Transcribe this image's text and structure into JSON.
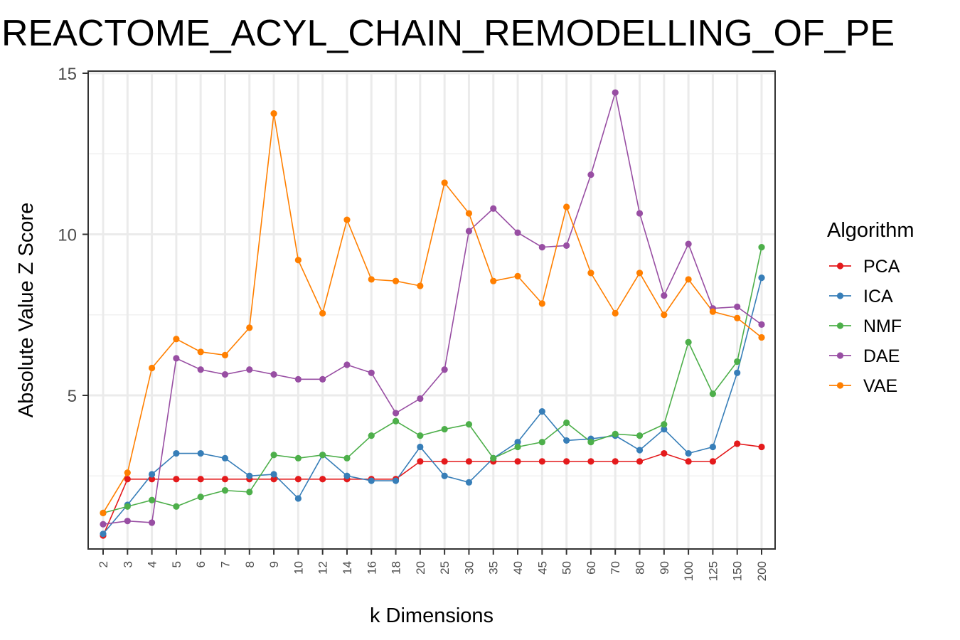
{
  "chart_data": {
    "type": "line",
    "title": "REACTOME_ACYL_CHAIN_REMODELLING_OF_PE",
    "xlabel": "k Dimensions",
    "ylabel": "Absolute Value Z Score",
    "ylim": [
      0.0,
      15.0
    ],
    "yticks": [
      5,
      10,
      15
    ],
    "grid": true,
    "legend_title": "Algorithm",
    "legend_position": "right",
    "categories": [
      "2",
      "3",
      "4",
      "5",
      "6",
      "7",
      "8",
      "9",
      "10",
      "12",
      "14",
      "16",
      "18",
      "20",
      "25",
      "30",
      "35",
      "40",
      "45",
      "50",
      "60",
      "70",
      "80",
      "90",
      "100",
      "125",
      "150",
      "200"
    ],
    "series": [
      {
        "name": "PCA",
        "color": "#E41A1C",
        "values": [
          0.65,
          2.4,
          2.4,
          2.4,
          2.4,
          2.4,
          2.4,
          2.4,
          2.4,
          2.4,
          2.4,
          2.4,
          2.4,
          2.95,
          2.95,
          2.95,
          2.95,
          2.95,
          2.95,
          2.95,
          2.95,
          2.95,
          2.95,
          3.2,
          2.95,
          2.95,
          3.5,
          3.4
        ]
      },
      {
        "name": "ICA",
        "color": "#377EB8",
        "values": [
          0.7,
          1.6,
          2.55,
          3.2,
          3.2,
          3.05,
          2.5,
          2.55,
          1.8,
          3.15,
          2.5,
          2.35,
          2.35,
          3.4,
          2.5,
          2.3,
          3.05,
          3.55,
          4.5,
          3.6,
          3.65,
          3.75,
          3.3,
          3.95,
          3.2,
          3.4,
          5.7,
          8.65
        ]
      },
      {
        "name": "NMF",
        "color": "#4DAF4A",
        "values": [
          1.35,
          1.55,
          1.75,
          1.55,
          1.85,
          2.05,
          2.0,
          3.15,
          3.05,
          3.15,
          3.05,
          3.75,
          4.2,
          3.75,
          3.95,
          4.1,
          3.05,
          3.4,
          3.55,
          4.15,
          3.55,
          3.8,
          3.75,
          4.1,
          6.65,
          5.05,
          6.05,
          9.6
        ]
      },
      {
        "name": "DAE",
        "color": "#984EA3",
        "values": [
          1.0,
          1.1,
          1.05,
          6.15,
          5.8,
          5.65,
          5.8,
          5.65,
          5.5,
          5.5,
          5.95,
          5.7,
          4.45,
          4.9,
          5.8,
          10.1,
          10.8,
          10.05,
          9.6,
          9.65,
          11.85,
          14.4,
          10.65,
          8.1,
          9.7,
          7.7,
          7.75,
          7.2
        ]
      },
      {
        "name": "VAE",
        "color": "#FF7F00",
        "values": [
          1.35,
          2.6,
          5.85,
          6.75,
          6.35,
          6.25,
          7.1,
          13.75,
          9.2,
          7.55,
          10.45,
          8.6,
          8.55,
          8.4,
          11.6,
          10.65,
          8.55,
          8.7,
          7.85,
          10.85,
          8.8,
          7.55,
          8.8,
          7.5,
          8.6,
          7.6,
          7.4,
          6.8
        ]
      }
    ]
  }
}
